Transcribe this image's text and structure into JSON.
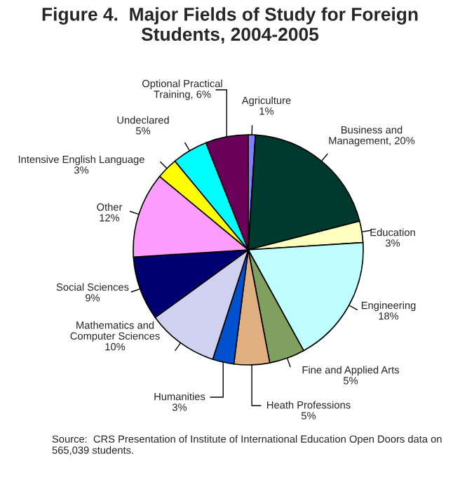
{
  "chart_data": {
    "type": "pie",
    "title": "Figure 4.  Major Fields of Study for Foreign Students, 2004-2005",
    "categories": [
      "Agriculture",
      "Business and Management",
      "Education",
      "Engineering",
      "Fine and Applied Arts",
      "Heath Professions",
      "Humanities",
      "Mathematics and Computer Sciences",
      "Social Sciences",
      "Other",
      "Intensive English Language",
      "Undeclared",
      "Optional Practical Training"
    ],
    "values": [
      1,
      20,
      3,
      18,
      5,
      5,
      3,
      10,
      9,
      12,
      3,
      5,
      6
    ],
    "colors": [
      "#8080ff",
      "#003a2e",
      "#ffffc0",
      "#c0ffff",
      "#80a060",
      "#e0b080",
      "#0050d0",
      "#d0d0f0",
      "#000070",
      "#ff9cff",
      "#ffff00",
      "#00ffff",
      "#6a005a"
    ],
    "value_labels": [
      "1%",
      "20%",
      "3%",
      "18%",
      "5%",
      "5%",
      "3%",
      "10%",
      "9%",
      "12%",
      "3%",
      "5%",
      "6%"
    ],
    "annotations": [
      "Source:  CRS Presentation of Institute of International Education Open Doors data on 565,039 students."
    ]
  }
}
